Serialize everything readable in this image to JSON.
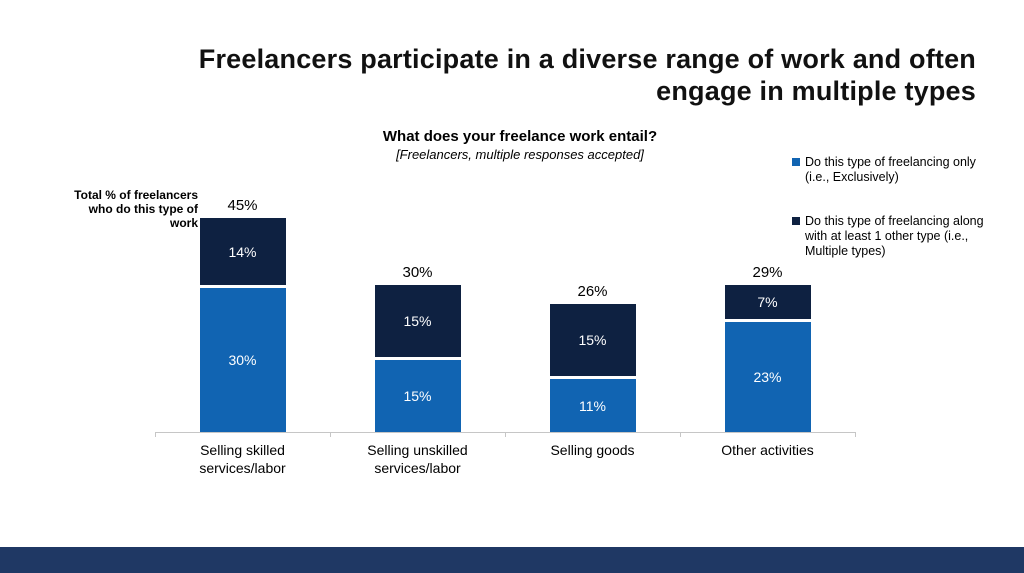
{
  "slide": {
    "title": "Freelancers participate in a diverse range of work and often engage in multiple types"
  },
  "chart": {
    "question": "What does your freelance work entail?",
    "note": "[Freelancers, multiple responses accepted]",
    "axis_label": "Total % of freelancers who do this type of work",
    "legend": [
      {
        "label": "Do this type of freelancing only (i.e., Exclusively)",
        "color": "#1164b2"
      },
      {
        "label": "Do this type of freelancing along with at least 1 other type (i.e., Multiple types)",
        "color": "#0e2141"
      }
    ]
  },
  "chart_data": {
    "type": "bar",
    "stacked": true,
    "categories": [
      "Selling skilled services/labor",
      "Selling unskilled services/labor",
      "Selling goods",
      "Other activities"
    ],
    "series": [
      {
        "name": "Do this type of freelancing only (i.e., Exclusively)",
        "color": "#1164b2",
        "values": [
          30,
          15,
          11,
          23
        ]
      },
      {
        "name": "Do this type of freelancing along with at least 1 other type (i.e., Multiple types)",
        "color": "#0e2141",
        "values": [
          14,
          15,
          15,
          7
        ]
      }
    ],
    "totals": [
      45,
      30,
      26,
      29
    ],
    "value_suffix": "%",
    "ylim": [
      0,
      50
    ],
    "grid": false,
    "legend_position": "right"
  },
  "colors": {
    "exclusive_blue": "#1164b2",
    "multiple_navy": "#0e2141",
    "footer_band": "#1f3864",
    "axis_gray": "#c6c6c6"
  }
}
